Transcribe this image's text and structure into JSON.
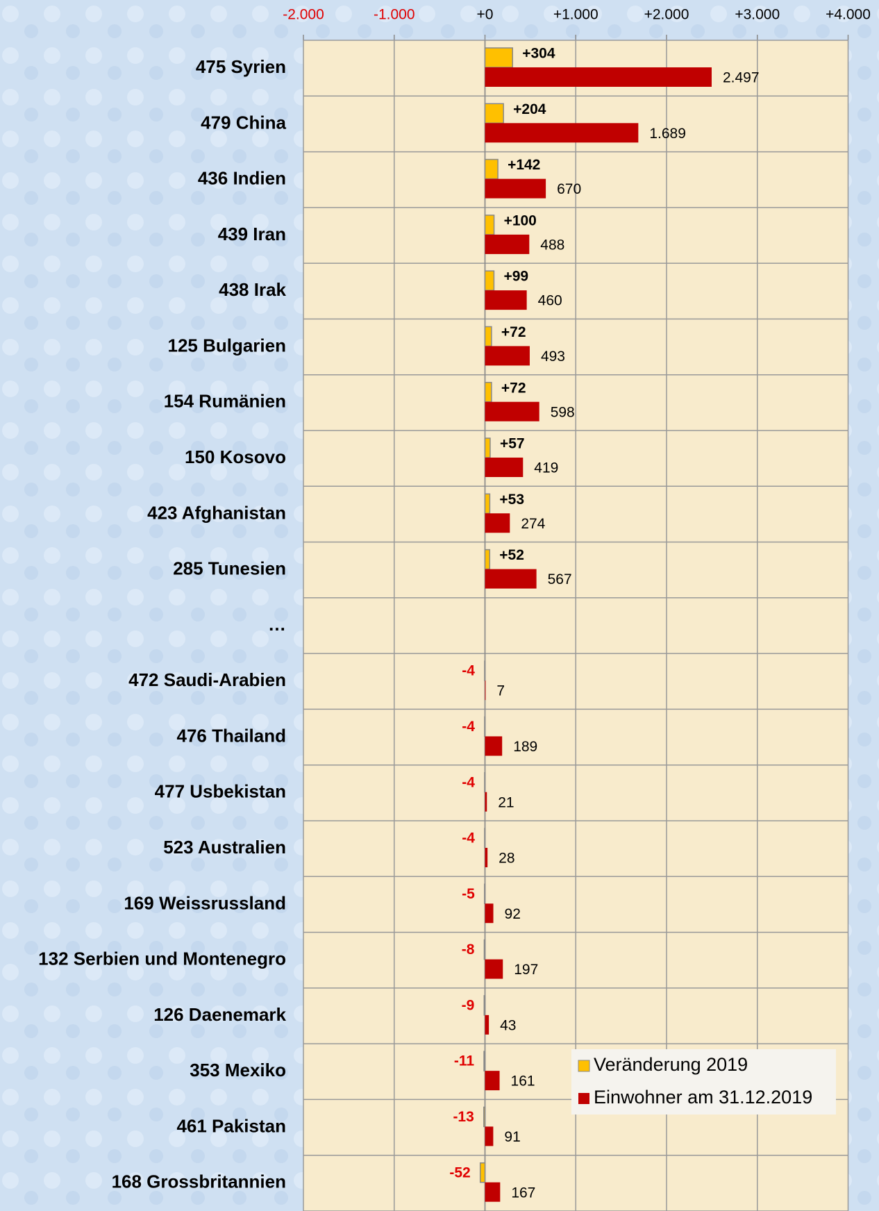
{
  "chart_data": {
    "type": "bar",
    "orientation": "horizontal",
    "categories": [
      "475 Syrien",
      "479 China",
      "436 Indien",
      "439 Iran",
      "438 Irak",
      "125 Bulgarien",
      "154 Rumänien",
      "150 Kosovo",
      "423 Afghanistan",
      "285 Tunesien",
      "…",
      "472 Saudi-Arabien",
      "476 Thailand",
      "477 Usbekistan",
      "523 Australien",
      "169 Weissrussland",
      "132 Serbien und Montenegro",
      "126 Daenemark",
      "353 Mexiko",
      "461 Pakistan",
      "168 Grossbritannien"
    ],
    "series": [
      {
        "name": "Veränderung 2019",
        "color": "#ffc000",
        "values": [
          304,
          204,
          142,
          100,
          99,
          72,
          72,
          57,
          53,
          52,
          null,
          -4,
          -4,
          -4,
          -4,
          -5,
          -8,
          -9,
          -11,
          -13,
          -52
        ],
        "value_labels": [
          "+304",
          "+204",
          "+142",
          "+100",
          "+99",
          "+72",
          "+72",
          "+57",
          "+53",
          "+52",
          null,
          "-4",
          "-4",
          "-4",
          "-4",
          "-5",
          "-8",
          "-9",
          "-11",
          "-13",
          "-52"
        ]
      },
      {
        "name": "Einwohner am 31.12.2019",
        "color": "#c00000",
        "values": [
          2497,
          1689,
          670,
          488,
          460,
          493,
          598,
          419,
          274,
          567,
          null,
          7,
          189,
          21,
          28,
          92,
          197,
          43,
          161,
          91,
          167
        ],
        "value_labels": [
          "2.497",
          "1.689",
          "670",
          "488",
          "460",
          "493",
          "598",
          "419",
          "274",
          "567",
          null,
          "7",
          "189",
          "21",
          "28",
          "92",
          "197",
          "43",
          "161",
          "91",
          "167"
        ]
      }
    ],
    "xlim": [
      -2000,
      4000
    ],
    "xticks": [
      {
        "value": -2000,
        "label": "-2.000"
      },
      {
        "value": -1000,
        "label": "-1.000"
      },
      {
        "value": 0,
        "label": "+0"
      },
      {
        "value": 1000,
        "label": "+1.000"
      },
      {
        "value": 2000,
        "label": "+2.000"
      },
      {
        "value": 3000,
        "label": "+3.000"
      },
      {
        "value": 4000,
        "label": "+4.000"
      }
    ],
    "grid": true,
    "legend": "lower right"
  }
}
